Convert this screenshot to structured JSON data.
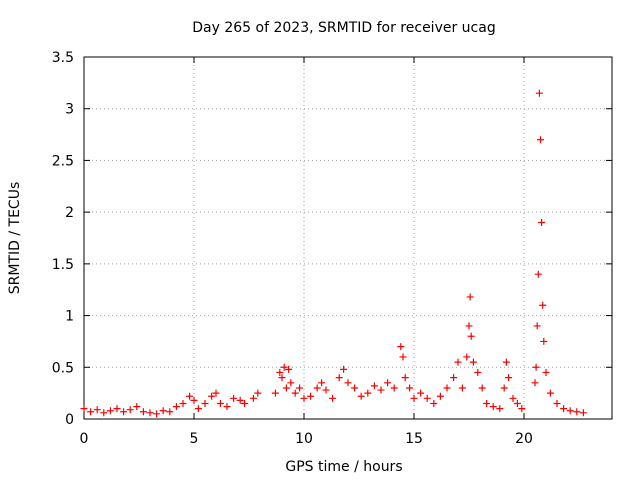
{
  "chart_data": {
    "type": "scatter",
    "title": "Day 265 of 2023, SRMTID for receiver ucag",
    "xlabel": "GPS time / hours",
    "ylabel": "SRMTID / TECUs",
    "xlim": [
      0,
      24
    ],
    "ylim": [
      0,
      3.5
    ],
    "xticks": [
      0,
      5,
      10,
      15,
      20
    ],
    "xtick_labels": [
      "0",
      "5",
      "10",
      "15",
      "20"
    ],
    "yticks": [
      0,
      0.5,
      1,
      1.5,
      2,
      2.5,
      3,
      3.5
    ],
    "ytick_labels": [
      "0",
      "0.5",
      "1",
      "1.5",
      "2",
      "2.5",
      "3",
      "3.5"
    ],
    "grid": true,
    "marker": "+",
    "color": "#ff0000",
    "series": [
      {
        "name": "SRMTID",
        "points": [
          [
            0.0,
            0.1
          ],
          [
            0.3,
            0.07
          ],
          [
            0.6,
            0.09
          ],
          [
            0.9,
            0.06
          ],
          [
            1.2,
            0.08
          ],
          [
            1.5,
            0.1
          ],
          [
            1.8,
            0.07
          ],
          [
            2.1,
            0.09
          ],
          [
            2.4,
            0.12
          ],
          [
            2.7,
            0.07
          ],
          [
            3.0,
            0.06
          ],
          [
            3.3,
            0.05
          ],
          [
            3.6,
            0.08
          ],
          [
            3.9,
            0.07
          ],
          [
            4.2,
            0.12
          ],
          [
            4.5,
            0.15
          ],
          [
            4.8,
            0.22
          ],
          [
            5.0,
            0.18
          ],
          [
            5.2,
            0.1
          ],
          [
            5.5,
            0.15
          ],
          [
            5.8,
            0.22
          ],
          [
            6.0,
            0.25
          ],
          [
            6.2,
            0.15
          ],
          [
            6.5,
            0.12
          ],
          [
            6.8,
            0.2
          ],
          [
            7.1,
            0.18
          ],
          [
            7.3,
            0.15
          ],
          [
            7.7,
            0.2
          ],
          [
            7.9,
            0.25
          ],
          [
            8.7,
            0.25
          ],
          [
            8.9,
            0.45
          ],
          [
            9.0,
            0.4
          ],
          [
            9.1,
            0.5
          ],
          [
            9.2,
            0.3
          ],
          [
            9.3,
            0.48
          ],
          [
            9.4,
            0.35
          ],
          [
            9.6,
            0.25
          ],
          [
            9.8,
            0.3
          ],
          [
            10.0,
            0.2
          ],
          [
            10.3,
            0.22
          ],
          [
            10.6,
            0.3
          ],
          [
            10.8,
            0.35
          ],
          [
            11.0,
            0.28
          ],
          [
            11.3,
            0.2
          ],
          [
            11.6,
            0.4
          ],
          [
            11.8,
            0.48
          ],
          [
            12.0,
            0.35
          ],
          [
            12.3,
            0.3
          ],
          [
            12.6,
            0.22
          ],
          [
            12.9,
            0.25
          ],
          [
            13.2,
            0.32
          ],
          [
            13.5,
            0.28
          ],
          [
            13.8,
            0.35
          ],
          [
            14.1,
            0.3
          ],
          [
            14.4,
            0.7
          ],
          [
            14.5,
            0.6
          ],
          [
            14.6,
            0.4
          ],
          [
            14.8,
            0.3
          ],
          [
            15.0,
            0.2
          ],
          [
            15.3,
            0.25
          ],
          [
            15.6,
            0.2
          ],
          [
            15.9,
            0.15
          ],
          [
            16.2,
            0.22
          ],
          [
            16.5,
            0.3
          ],
          [
            16.8,
            0.4
          ],
          [
            17.0,
            0.55
          ],
          [
            17.2,
            0.3
          ],
          [
            17.4,
            0.6
          ],
          [
            17.5,
            0.9
          ],
          [
            17.55,
            1.18
          ],
          [
            17.6,
            0.8
          ],
          [
            17.7,
            0.55
          ],
          [
            17.9,
            0.45
          ],
          [
            18.1,
            0.3
          ],
          [
            18.3,
            0.15
          ],
          [
            18.6,
            0.12
          ],
          [
            18.9,
            0.1
          ],
          [
            19.1,
            0.3
          ],
          [
            19.2,
            0.55
          ],
          [
            19.3,
            0.4
          ],
          [
            19.5,
            0.2
          ],
          [
            19.7,
            0.15
          ],
          [
            19.9,
            0.1
          ],
          [
            20.5,
            0.35
          ],
          [
            20.55,
            0.5
          ],
          [
            20.6,
            0.9
          ],
          [
            20.65,
            1.4
          ],
          [
            20.7,
            3.15
          ],
          [
            20.75,
            2.7
          ],
          [
            20.8,
            1.9
          ],
          [
            20.85,
            1.1
          ],
          [
            20.9,
            0.75
          ],
          [
            21.0,
            0.45
          ],
          [
            21.2,
            0.25
          ],
          [
            21.5,
            0.15
          ],
          [
            21.8,
            0.1
          ],
          [
            22.1,
            0.08
          ],
          [
            22.4,
            0.07
          ],
          [
            22.7,
            0.06
          ]
        ]
      }
    ]
  }
}
